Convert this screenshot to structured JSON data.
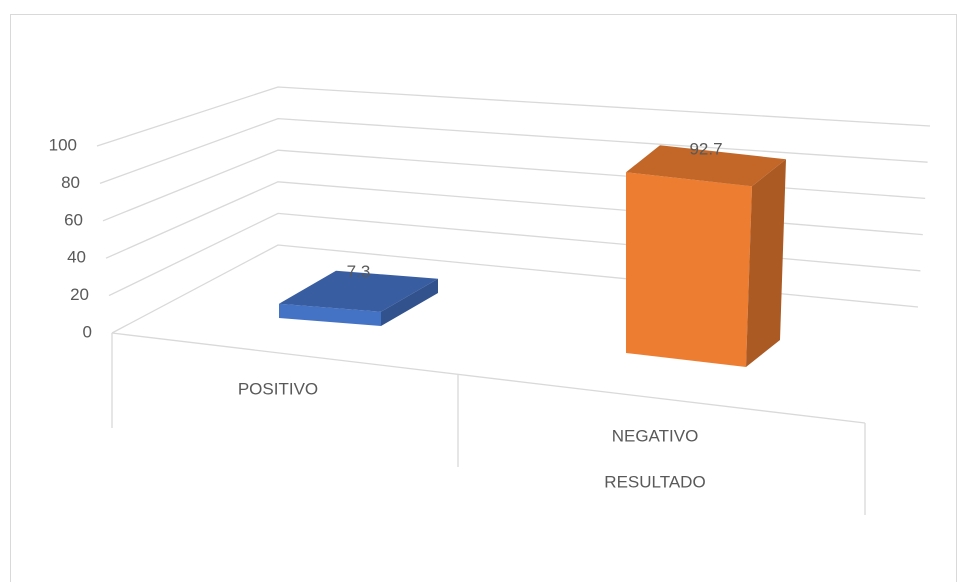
{
  "chart_data": {
    "type": "bar3d",
    "categories": [
      "POSITIVO",
      "NEGATIVO"
    ],
    "values": [
      7.3,
      92.7
    ],
    "colors": [
      "#4472c4",
      "#ed7d31"
    ],
    "x_label": "RESULTADO",
    "ylim": [
      0,
      100
    ],
    "yticks": [
      0,
      20,
      40,
      60,
      80,
      100
    ],
    "grid": true
  }
}
